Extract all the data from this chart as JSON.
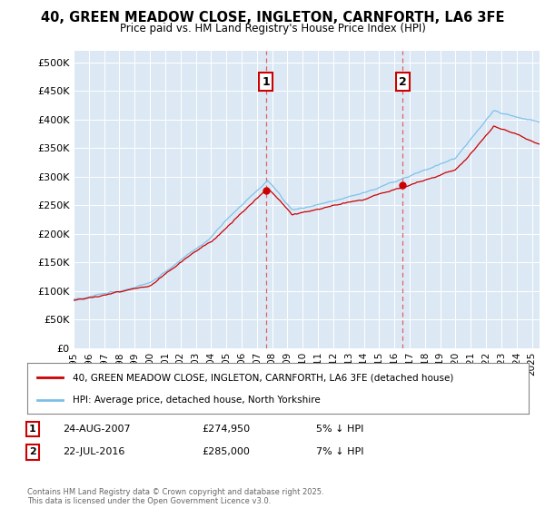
{
  "title": "40, GREEN MEADOW CLOSE, INGLETON, CARNFORTH, LA6 3FE",
  "subtitle": "Price paid vs. HM Land Registry's House Price Index (HPI)",
  "ylabel_ticks": [
    "£0",
    "£50K",
    "£100K",
    "£150K",
    "£200K",
    "£250K",
    "£300K",
    "£350K",
    "£400K",
    "£450K",
    "£500K"
  ],
  "ytick_vals": [
    0,
    50000,
    100000,
    150000,
    200000,
    250000,
    300000,
    350000,
    400000,
    450000,
    500000
  ],
  "ylim": [
    0,
    520000
  ],
  "xlim_start": 1995.0,
  "xlim_end": 2025.5,
  "sale1_x": 2007.58,
  "sale1_y": 274950,
  "sale2_x": 2016.55,
  "sale2_y": 285000,
  "hpi_color": "#7bbfe8",
  "price_color": "#cc0000",
  "sale_vline_color": "#e06060",
  "plot_bg": "#dce9f5",
  "legend_label_red": "40, GREEN MEADOW CLOSE, INGLETON, CARNFORTH, LA6 3FE (detached house)",
  "legend_label_blue": "HPI: Average price, detached house, North Yorkshire",
  "sale1_date": "24-AUG-2007",
  "sale1_price": "£274,950",
  "sale1_hpi": "5% ↓ HPI",
  "sale2_date": "22-JUL-2016",
  "sale2_price": "£285,000",
  "sale2_hpi": "7% ↓ HPI",
  "footer": "Contains HM Land Registry data © Crown copyright and database right 2025.\nThis data is licensed under the Open Government Licence v3.0.",
  "xtick_years": [
    1995,
    1996,
    1997,
    1998,
    1999,
    2000,
    2001,
    2002,
    2003,
    2004,
    2005,
    2006,
    2007,
    2008,
    2009,
    2010,
    2011,
    2012,
    2013,
    2014,
    2015,
    2016,
    2017,
    2018,
    2019,
    2020,
    2021,
    2022,
    2023,
    2024,
    2025
  ]
}
